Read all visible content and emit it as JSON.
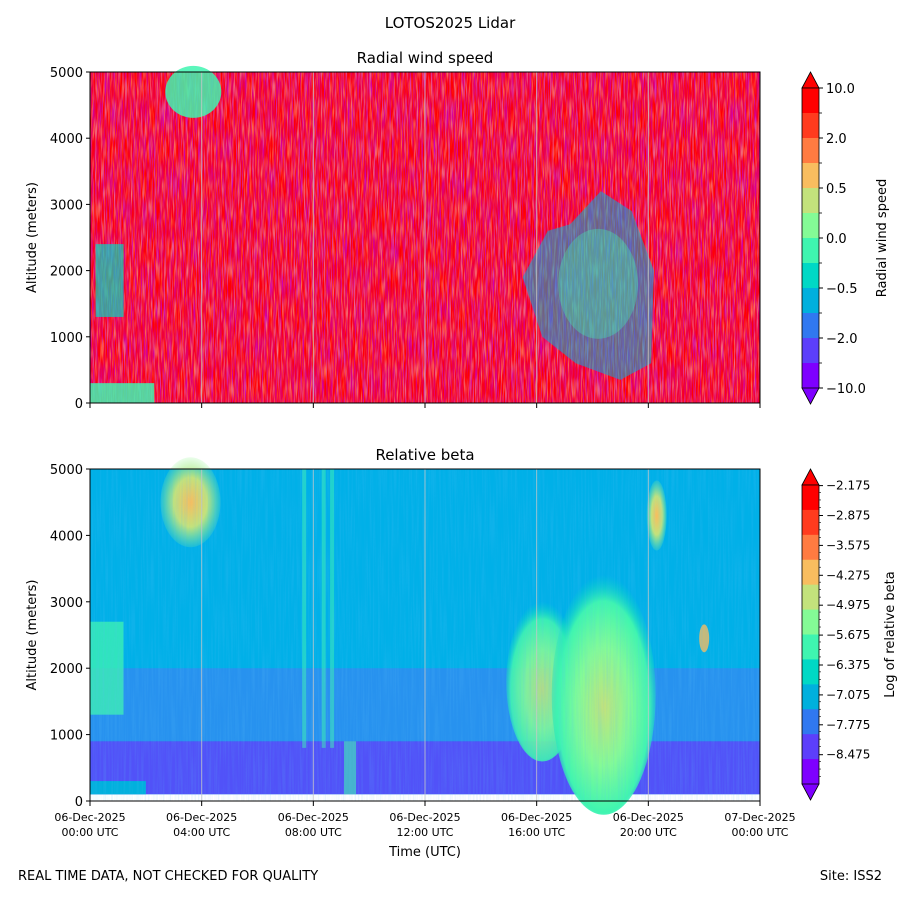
{
  "figure": {
    "suptitle": "LOTOS2025 Lidar",
    "footer_left": "REAL TIME DATA, NOT CHECKED FOR QUALITY",
    "footer_right": "Site: ISS2"
  },
  "chart_data": [
    {
      "type": "heatmap",
      "title": "Radial wind speed",
      "xlabel": "",
      "ylabel": "Altitude (meters)",
      "ylim": [
        0,
        5000
      ],
      "yticks": [
        "0",
        "1000",
        "2000",
        "3000",
        "4000",
        "5000"
      ],
      "xlim_hours": [
        0,
        24
      ],
      "x_tick_hours": [
        0,
        4,
        8,
        12,
        16,
        20,
        24
      ],
      "xticklabels_shown": false,
      "colorbar": {
        "label": "Radial wind speed",
        "tick_labels": [
          "10.0",
          "2.0",
          "0.5",
          "0.0",
          "−0.5",
          "−2.0",
          "−10.0"
        ],
        "colors_top_to_bottom": [
          "#ff0000",
          "#ff3b1e",
          "#ff7b41",
          "#f8bd5f",
          "#c3e27c",
          "#84fb96",
          "#3ff5b0",
          "#00d8c5",
          "#00b0dd",
          "#3078f0",
          "#5c3ffb",
          "#7e00ff"
        ]
      },
      "data_description_regions": [
        {
          "hours": [
            0,
            2
          ],
          "altitude": [
            0,
            350
          ],
          "value": "0.0"
        },
        {
          "hours": [
            0,
            24
          ],
          "altitude": [
            350,
            5000
          ],
          "value": "10.0 mixed noise"
        },
        {
          "hours": [
            6.5,
            9.5
          ],
          "altitude": [
            4000,
            5000
          ],
          "value": "−0.5"
        },
        {
          "hours": [
            15.5,
            20.5
          ],
          "altitude": [
            300,
            3200
          ],
          "value": "−0.5"
        }
      ]
    },
    {
      "type": "heatmap",
      "title": "Relative beta",
      "xlabel": "Time (UTC)",
      "ylabel": "Altitude (meters)",
      "ylim": [
        0,
        5000
      ],
      "yticks": [
        "0",
        "1000",
        "2000",
        "3000",
        "4000",
        "5000"
      ],
      "xlim_hours": [
        0,
        24
      ],
      "x_tick_hours": [
        0,
        4,
        8,
        12,
        16,
        20,
        24
      ],
      "xticklabels": [
        {
          "date": "06-Dec-2025",
          "time": "00:00 UTC"
        },
        {
          "date": "06-Dec-2025",
          "time": "04:00 UTC"
        },
        {
          "date": "06-Dec-2025",
          "time": "08:00 UTC"
        },
        {
          "date": "06-Dec-2025",
          "time": "12:00 UTC"
        },
        {
          "date": "06-Dec-2025",
          "time": "16:00 UTC"
        },
        {
          "date": "06-Dec-2025",
          "time": "20:00 UTC"
        },
        {
          "date": "07-Dec-2025",
          "time": "00:00 UTC"
        }
      ],
      "colorbar": {
        "label": "Log of relative beta",
        "tick_labels": [
          "−2.175",
          "−2.875",
          "−3.575",
          "−4.275",
          "−4.975",
          "−5.675",
          "−6.375",
          "−7.075",
          "−7.775",
          "−8.475"
        ],
        "colors_top_to_bottom": [
          "#ff0000",
          "#ff3b1e",
          "#ff7b41",
          "#f8bd5f",
          "#c3e27c",
          "#84fb96",
          "#3ff5b0",
          "#00d8c5",
          "#00b0dd",
          "#3078f0",
          "#5c3ffb",
          "#7e00ff"
        ]
      },
      "data_description_regions": [
        {
          "hours": [
            0,
            24
          ],
          "altitude": [
            0,
            900
          ],
          "value": "-8.2"
        },
        {
          "hours": [
            0,
            24
          ],
          "altitude": [
            900,
            2000
          ],
          "value": "-7.4"
        },
        {
          "hours": [
            0,
            24
          ],
          "altitude": [
            2000,
            5000
          ],
          "value": "-7.0"
        },
        {
          "hours": [
            2.5,
            4.5
          ],
          "altitude": [
            3700,
            5000
          ],
          "value": "-4.9"
        },
        {
          "hours": [
            14.8,
            19.2
          ],
          "altitude": [
            350,
            3000
          ],
          "value": "-5.5"
        }
      ]
    }
  ]
}
